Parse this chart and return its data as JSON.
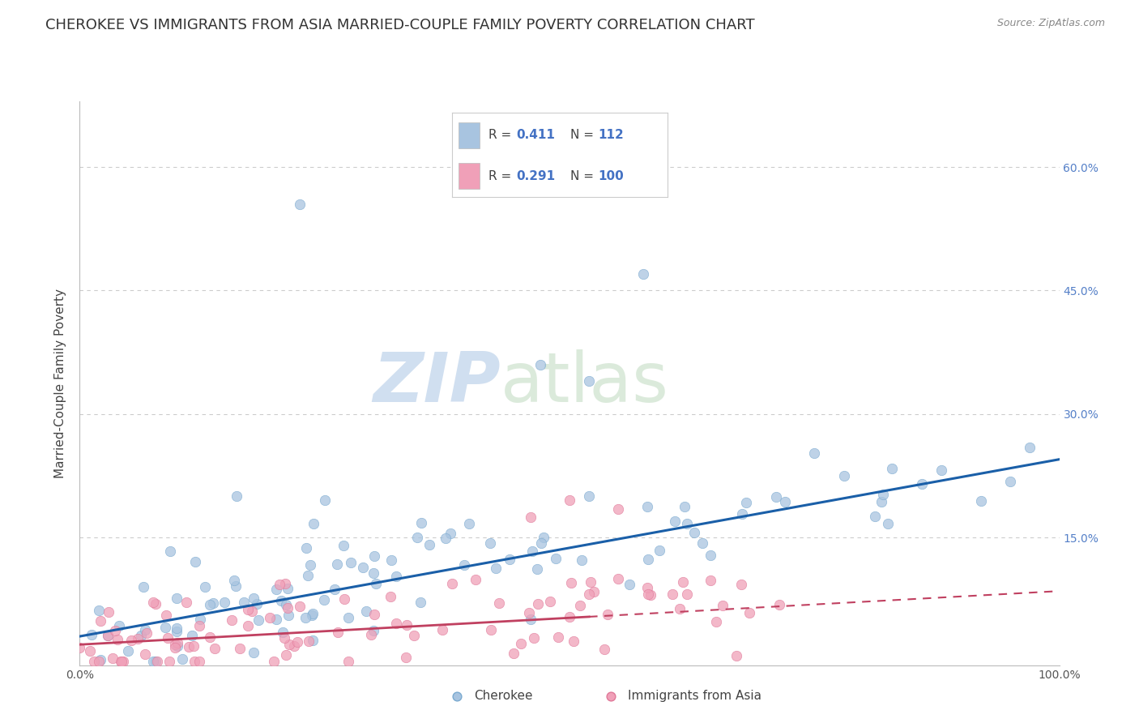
{
  "title": "CHEROKEE VS IMMIGRANTS FROM ASIA MARRIED-COUPLE FAMILY POVERTY CORRELATION CHART",
  "source": "Source: ZipAtlas.com",
  "ylabel": "Married-Couple Family Poverty",
  "x_min": 0.0,
  "x_max": 1.0,
  "y_min": -0.005,
  "y_max": 0.68,
  "y_ticks": [
    0.0,
    0.15,
    0.3,
    0.45,
    0.6
  ],
  "y_tick_labels": [
    "",
    "15.0%",
    "30.0%",
    "45.0%",
    "60.0%"
  ],
  "x_ticks": [
    0.0,
    0.25,
    0.5,
    0.75,
    1.0
  ],
  "x_tick_labels": [
    "0.0%",
    "",
    "",
    "",
    "100.0%"
  ],
  "cherokee_R": 0.411,
  "cherokee_N": 112,
  "asia_R": 0.291,
  "asia_N": 100,
  "cherokee_color": "#a8c4e0",
  "cherokee_edge_color": "#7aaad0",
  "cherokee_line_color": "#1a5fa8",
  "asia_color": "#f0a0b8",
  "asia_edge_color": "#e07898",
  "asia_line_color": "#c04060",
  "watermark_zip": "ZIP",
  "watermark_atlas": "atlas",
  "watermark_color": "#d0dff0",
  "legend_label_cherokee": "Cherokee",
  "legend_label_asia": "Immigrants from Asia",
  "background_color": "#ffffff",
  "grid_color": "#cccccc",
  "title_fontsize": 13,
  "axis_label_fontsize": 11,
  "tick_fontsize": 10,
  "legend_fontsize": 13,
  "cherokee_seed": 42,
  "asia_seed": 99,
  "ch_intercept": 0.03,
  "ch_slope": 0.215,
  "as_intercept": 0.02,
  "as_slope": 0.065
}
